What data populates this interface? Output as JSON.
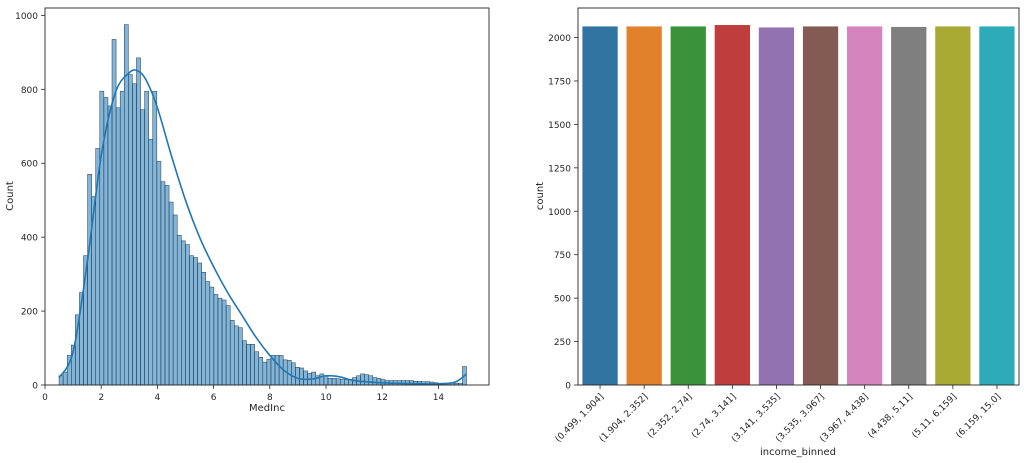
{
  "chart_data": [
    {
      "type": "histogram",
      "xlabel": "MedInc",
      "ylabel": "Count",
      "xlim": [
        0,
        15.8
      ],
      "ylim": [
        0,
        1020
      ],
      "xticks": [
        0,
        2,
        4,
        6,
        8,
        10,
        12,
        14
      ],
      "yticks": [
        0,
        200,
        400,
        600,
        800,
        1000
      ],
      "bin_start": 0.5,
      "bin_width": 0.145,
      "counts": [
        25,
        35,
        80,
        108,
        190,
        250,
        350,
        570,
        510,
        640,
        795,
        778,
        755,
        935,
        750,
        795,
        975,
        840,
        815,
        885,
        745,
        795,
        665,
        795,
        605,
        550,
        540,
        495,
        460,
        405,
        390,
        380,
        350,
        345,
        330,
        305,
        280,
        265,
        245,
        235,
        230,
        215,
        175,
        160,
        155,
        120,
        110,
        110,
        90,
        75,
        62,
        70,
        80,
        80,
        80,
        68,
        67,
        60,
        48,
        46,
        38,
        32,
        35,
        25,
        30,
        24,
        18,
        18,
        17,
        16,
        15,
        15,
        20,
        25,
        30,
        28,
        25,
        20,
        18,
        15,
        12,
        12,
        12,
        12,
        12,
        12,
        12,
        10,
        10,
        9,
        9,
        8,
        6,
        5,
        5,
        5,
        5,
        5,
        5,
        50
      ],
      "kde": [
        [
          0.5,
          20
        ],
        [
          1.0,
          90
        ],
        [
          1.5,
          330
        ],
        [
          2.0,
          620
        ],
        [
          2.5,
          790
        ],
        [
          3.0,
          845
        ],
        [
          3.3,
          850
        ],
        [
          3.6,
          825
        ],
        [
          4.0,
          750
        ],
        [
          4.5,
          620
        ],
        [
          5.0,
          500
        ],
        [
          5.5,
          400
        ],
        [
          6.0,
          320
        ],
        [
          6.5,
          250
        ],
        [
          7.0,
          190
        ],
        [
          7.5,
          130
        ],
        [
          8.0,
          80
        ],
        [
          8.5,
          40
        ],
        [
          9.0,
          18
        ],
        [
          9.5,
          16
        ],
        [
          10.0,
          25
        ],
        [
          10.5,
          22
        ],
        [
          11.0,
          12
        ],
        [
          12.0,
          6
        ],
        [
          13.0,
          4
        ],
        [
          14.0,
          3
        ],
        [
          14.6,
          8
        ],
        [
          15.0,
          30
        ]
      ],
      "color": "#1f77b4"
    },
    {
      "type": "bar",
      "xlabel": "income_binned",
      "ylabel": "count",
      "ylim": [
        0,
        2170
      ],
      "yticks": [
        0,
        250,
        500,
        750,
        1000,
        1250,
        1500,
        1750,
        2000
      ],
      "categories": [
        "(0.499, 1.904]",
        "(1.904, 2.352]",
        "(2.352, 2.74]",
        "(2.74, 3.141]",
        "(3.141, 3.535]",
        "(3.535, 3.967]",
        "(3.967, 4.438]",
        "(4.438, 5.11]",
        "(5.11, 6.159]",
        "(6.159, 15.0]"
      ],
      "values": [
        2064,
        2064,
        2064,
        2072,
        2058,
        2064,
        2064,
        2061,
        2064,
        2064
      ],
      "colors": [
        "#3274a1",
        "#e1812c",
        "#3a923a",
        "#c03d3e",
        "#9372b2",
        "#845b53",
        "#d684bd",
        "#7f7f7f",
        "#a9aa35",
        "#2eabb8"
      ]
    }
  ]
}
